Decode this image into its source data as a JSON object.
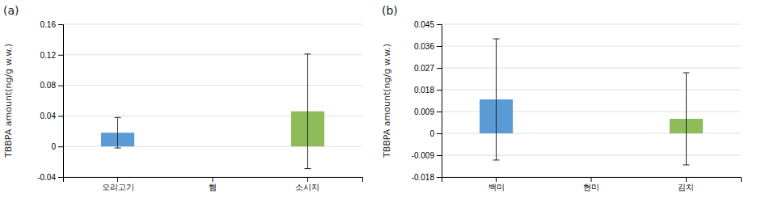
{
  "chart_data": [
    {
      "type": "bar",
      "title": "(a)",
      "categories": [
        "오리고기",
        "햄",
        "소시지"
      ],
      "values": [
        0.018,
        0.0,
        0.046
      ],
      "errors": [
        0.02,
        0.0,
        0.075
      ],
      "colors": [
        "#5b9bd5",
        "#5b9bd5",
        "#8fbc5a"
      ],
      "ylabel": "TBBPA amount(ng/g w.w.)",
      "ylim": [
        -0.04,
        0.16
      ],
      "yticks": [
        -0.04,
        0,
        0.04,
        0.08,
        0.12,
        0.16
      ],
      "grid": true
    },
    {
      "type": "bar",
      "title": "(b)",
      "categories": [
        "백미",
        "현미",
        "김치"
      ],
      "values": [
        0.014,
        0.0,
        0.006
      ],
      "errors": [
        0.025,
        0.0,
        0.019
      ],
      "colors": [
        "#5b9bd5",
        "#5b9bd5",
        "#8fbc5a"
      ],
      "ylabel": "TBBPA amount(ng/g w.w.)",
      "ylim": [
        -0.018,
        0.045
      ],
      "yticks": [
        -0.018,
        -0.009,
        0,
        0.009,
        0.018,
        0.027,
        0.036,
        0.045
      ],
      "grid": true
    }
  ]
}
